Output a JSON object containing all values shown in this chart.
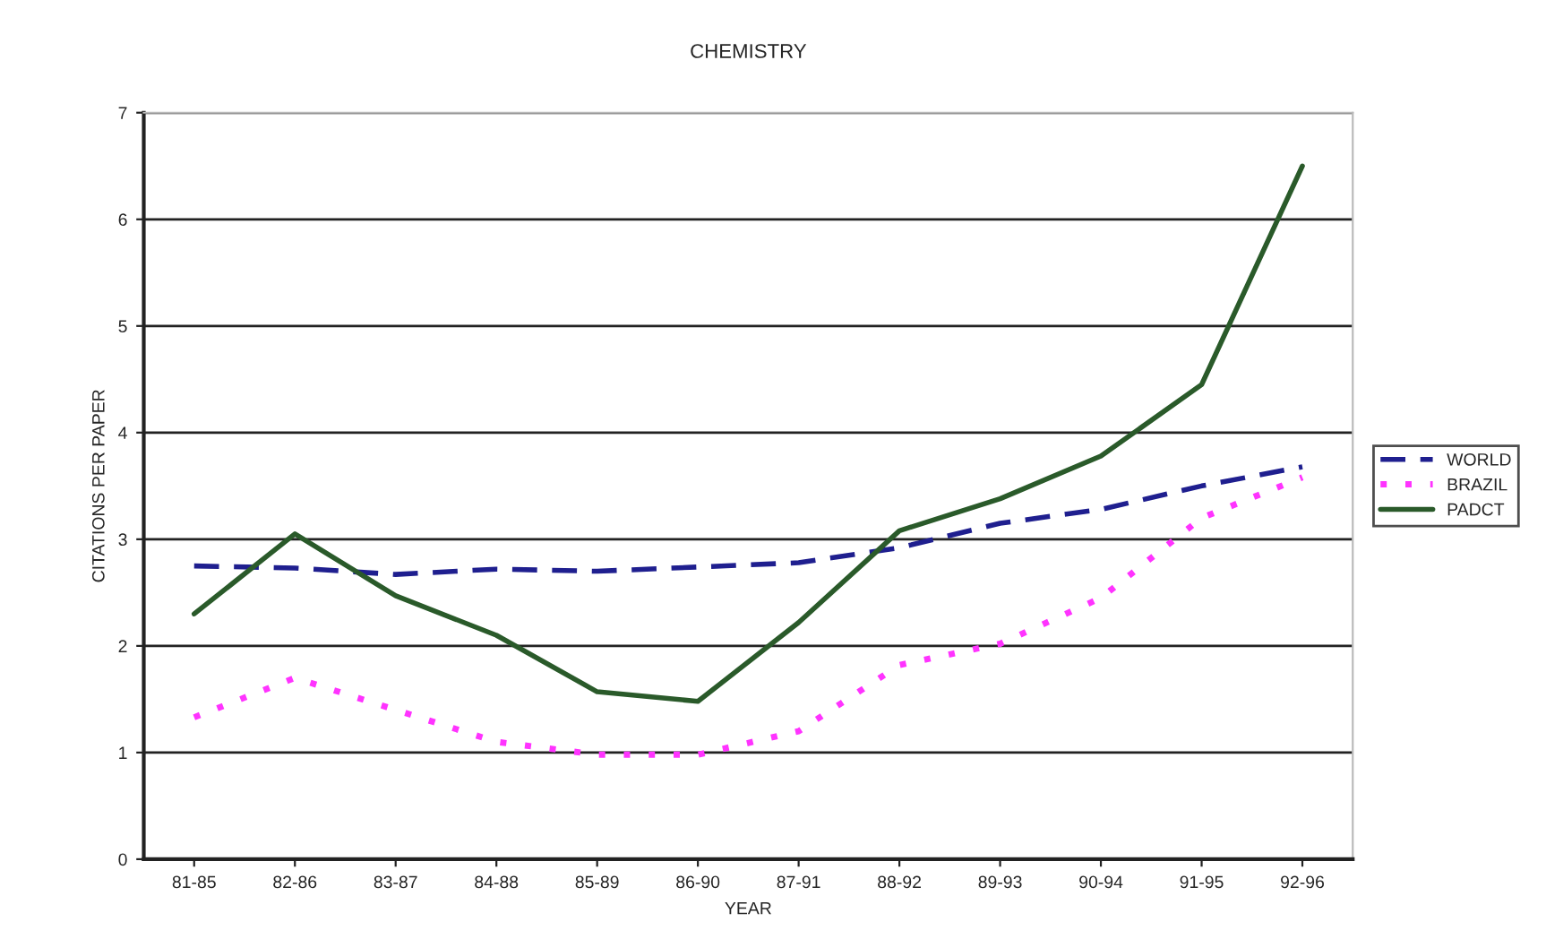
{
  "chart_data": {
    "type": "line",
    "title": "CHEMISTRY",
    "xlabel": "YEAR",
    "ylabel": "CITATIONS PER PAPER",
    "categories": [
      "81-85",
      "82-86",
      "83-87",
      "84-88",
      "85-89",
      "86-90",
      "87-91",
      "88-92",
      "89-93",
      "90-94",
      "91-95",
      "92-96"
    ],
    "series": [
      {
        "name": "WORLD",
        "color": "#1f1f8f",
        "line_style": "dashed",
        "values": [
          2.75,
          2.73,
          2.67,
          2.72,
          2.7,
          2.74,
          2.78,
          2.92,
          3.15,
          3.28,
          3.5,
          3.68
        ]
      },
      {
        "name": "BRAZIL",
        "color": "#ff33ff",
        "line_style": "dotted",
        "values": [
          1.33,
          1.7,
          1.4,
          1.1,
          0.98,
          0.98,
          1.2,
          1.82,
          2.02,
          2.45,
          3.2,
          3.58
        ]
      },
      {
        "name": "PADCT",
        "color": "#2a5a2a",
        "line_style": "solid",
        "values": [
          2.3,
          3.05,
          2.47,
          2.1,
          1.57,
          1.48,
          2.22,
          3.08,
          3.38,
          3.78,
          4.45,
          6.5
        ]
      }
    ],
    "ylim": [
      0,
      7
    ],
    "yticks": [
      0,
      1,
      2,
      3,
      4,
      5,
      6,
      7
    ],
    "grid": "y",
    "legend": "right",
    "marker": "none"
  }
}
